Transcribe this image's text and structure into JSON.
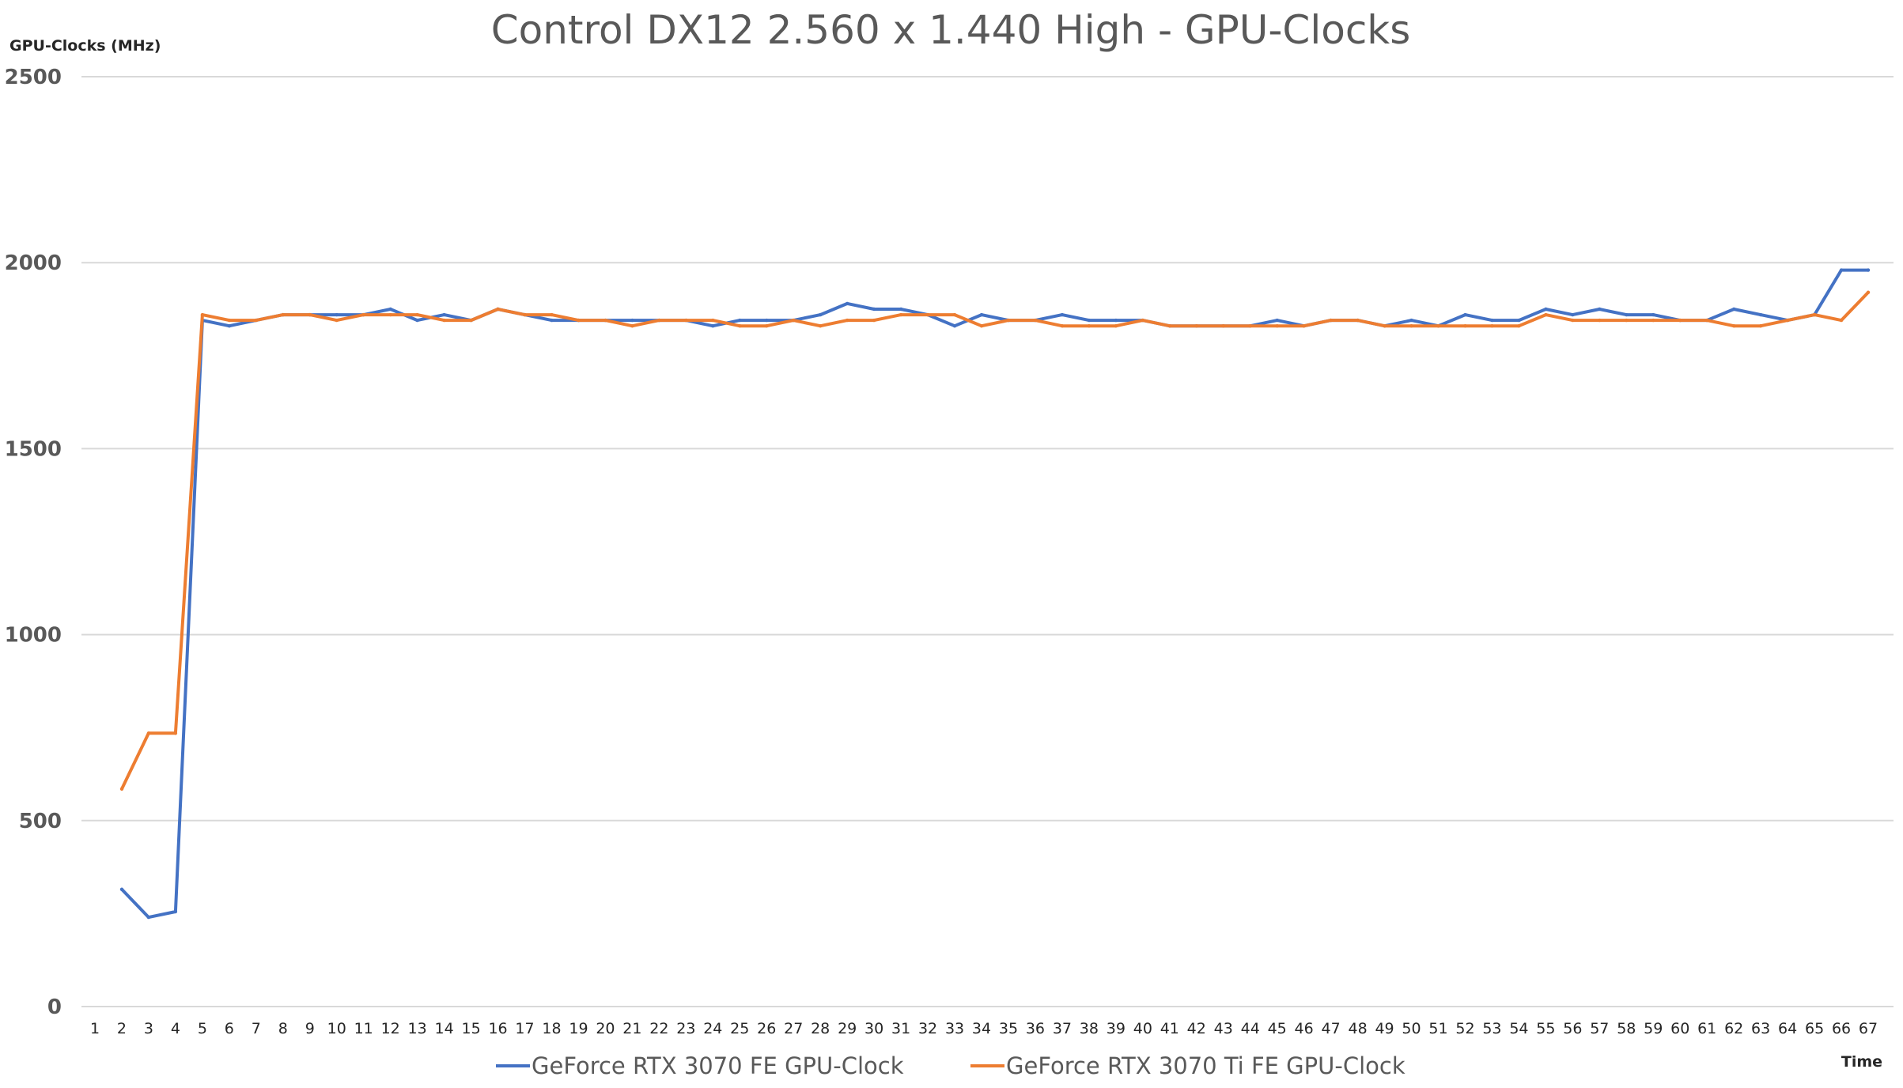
{
  "chart_data": {
    "type": "line",
    "title": "Control DX12 2.560 x 1.440 High - GPU-Clocks",
    "ylabel": "GPU-Clocks (MHz)",
    "xlabel": "Time",
    "ylim": [
      0,
      2500
    ],
    "yticks": [
      0,
      500,
      1000,
      1500,
      2000,
      2500
    ],
    "grid": true,
    "legend_position": "bottom",
    "categories": [
      "1",
      "2",
      "3",
      "4",
      "5",
      "6",
      "7",
      "8",
      "9",
      "10",
      "11",
      "12",
      "13",
      "14",
      "15",
      "16",
      "17",
      "18",
      "19",
      "20",
      "21",
      "22",
      "23",
      "24",
      "25",
      "26",
      "27",
      "28",
      "29",
      "30",
      "31",
      "32",
      "33",
      "34",
      "35",
      "36",
      "37",
      "38",
      "39",
      "40",
      "41",
      "42",
      "43",
      "44",
      "45",
      "46",
      "47",
      "48",
      "49",
      "50",
      "51",
      "52",
      "53",
      "54",
      "55",
      "56",
      "57",
      "58",
      "59",
      "60",
      "61",
      "62",
      "63",
      "64",
      "65",
      "66",
      "67"
    ],
    "series": [
      {
        "name": "GeForce RTX 3070 FE GPU-Clock",
        "color": "#4472c4",
        "values": [
          null,
          315,
          240,
          255,
          1845,
          1830,
          1845,
          1860,
          1860,
          1860,
          1860,
          1875,
          1845,
          1860,
          1845,
          1875,
          1860,
          1845,
          1845,
          1845,
          1845,
          1845,
          1845,
          1830,
          1845,
          1845,
          1845,
          1860,
          1890,
          1875,
          1875,
          1860,
          1830,
          1860,
          1845,
          1845,
          1860,
          1845,
          1845,
          1845,
          1830,
          1830,
          1830,
          1830,
          1845,
          1830,
          1845,
          1845,
          1830,
          1845,
          1830,
          1860,
          1845,
          1845,
          1875,
          1860,
          1875,
          1860,
          1860,
          1845,
          1845,
          1875,
          1860,
          1845,
          1860,
          1980,
          1980
        ]
      },
      {
        "name": "GeForce RTX 3070 Ti FE GPU-Clock",
        "color": "#ed7d31",
        "values": [
          null,
          585,
          735,
          735,
          1860,
          1845,
          1845,
          1860,
          1860,
          1845,
          1860,
          1860,
          1860,
          1845,
          1845,
          1875,
          1860,
          1860,
          1845,
          1845,
          1830,
          1845,
          1845,
          1845,
          1830,
          1830,
          1845,
          1830,
          1845,
          1845,
          1860,
          1860,
          1860,
          1830,
          1845,
          1845,
          1830,
          1830,
          1830,
          1845,
          1830,
          1830,
          1830,
          1830,
          1830,
          1830,
          1845,
          1845,
          1830,
          1830,
          1830,
          1830,
          1830,
          1830,
          1860,
          1845,
          1845,
          1845,
          1845,
          1845,
          1845,
          1830,
          1830,
          1845,
          1860,
          1845,
          1920
        ]
      }
    ]
  }
}
